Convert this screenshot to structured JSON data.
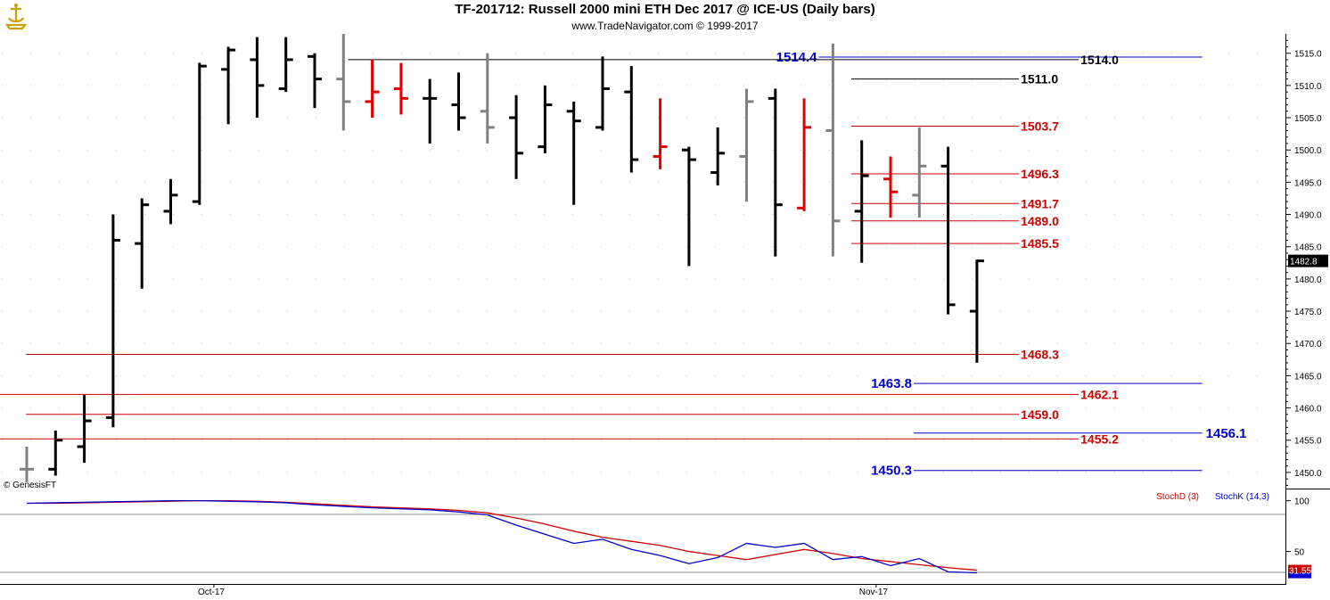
{
  "header": {
    "title": "TF-201712:  Russell 2000 mini ETH Dec 2017 @ ICE-US  (Daily bars)",
    "subtitle": "www.TradeNavigator.com © 1999-2017"
  },
  "watermark": "© GenesisFT",
  "colors": {
    "black_bar": "#000000",
    "gray_bar": "#808080",
    "red_bar": "#e00000",
    "red_level": "#cc0000",
    "blue_level": "#0000cc",
    "stoch_d": "#d00000",
    "stoch_k": "#0000d0",
    "last_price_badge": "#000000"
  },
  "chart_data": [
    {
      "type": "ohlc",
      "ylim": [
        1447.5,
        1518
      ],
      "y_ticks": [
        "1515.0",
        "1510.0",
        "1505.0",
        "1500.0",
        "1495.0",
        "1490.0",
        "1485.0",
        "1480.0",
        "1475.0",
        "1470.0",
        "1465.0",
        "1460.0",
        "1455.0",
        "1450.0"
      ],
      "y_tick_values": [
        1515,
        1510,
        1505,
        1500,
        1495,
        1490,
        1485,
        1480,
        1475,
        1470,
        1465,
        1460,
        1455,
        1450
      ],
      "x_labels": [
        {
          "label": "Oct-17",
          "bar_index": 6.5
        },
        {
          "label": "Nov-17",
          "bar_index": 29.5
        }
      ],
      "last_price": "1482.8",
      "last_price_value": 1482.8,
      "bars": [
        {
          "o": 1450.5,
          "h": 1454.0,
          "l": 1448.5,
          "c": 1450.5,
          "color": "gray"
        },
        {
          "o": 1450.5,
          "h": 1456.5,
          "l": 1449.5,
          "c": 1455.0,
          "color": "black"
        },
        {
          "o": 1454.0,
          "h": 1462.0,
          "l": 1451.5,
          "c": 1458.0,
          "color": "black"
        },
        {
          "o": 1458.5,
          "h": 1490.0,
          "l": 1457.0,
          "c": 1486.0,
          "color": "black"
        },
        {
          "o": 1485.5,
          "h": 1492.5,
          "l": 1478.5,
          "c": 1491.5,
          "color": "black"
        },
        {
          "o": 1490.5,
          "h": 1495.5,
          "l": 1488.5,
          "c": 1493.0,
          "color": "black"
        },
        {
          "o": 1492.0,
          "h": 1513.5,
          "l": 1491.5,
          "c": 1513.0,
          "color": "black"
        },
        {
          "o": 1512.5,
          "h": 1516.0,
          "l": 1504.0,
          "c": 1515.5,
          "color": "black"
        },
        {
          "o": 1514.0,
          "h": 1517.5,
          "l": 1505.0,
          "c": 1510.0,
          "color": "black"
        },
        {
          "o": 1509.5,
          "h": 1517.5,
          "l": 1509.0,
          "c": 1514.0,
          "color": "black"
        },
        {
          "o": 1514.5,
          "h": 1515.0,
          "l": 1506.5,
          "c": 1511.0,
          "color": "black"
        },
        {
          "o": 1511.0,
          "h": 1518.0,
          "l": 1503.0,
          "c": 1507.5,
          "color": "gray"
        },
        {
          "o": 1507.5,
          "h": 1514.0,
          "l": 1505.0,
          "c": 1509.0,
          "color": "red"
        },
        {
          "o": 1509.5,
          "h": 1513.5,
          "l": 1505.5,
          "c": 1508.0,
          "color": "red"
        },
        {
          "o": 1508.0,
          "h": 1511.0,
          "l": 1501.0,
          "c": 1508.0,
          "color": "black"
        },
        {
          "o": 1507.0,
          "h": 1512.0,
          "l": 1503.0,
          "c": 1505.0,
          "color": "black"
        },
        {
          "o": 1506.0,
          "h": 1515.0,
          "l": 1501.0,
          "c": 1503.5,
          "color": "gray"
        },
        {
          "o": 1505.0,
          "h": 1508.5,
          "l": 1495.5,
          "c": 1499.5,
          "color": "black"
        },
        {
          "o": 1500.5,
          "h": 1510.0,
          "l": 1499.5,
          "c": 1507.0,
          "color": "black"
        },
        {
          "o": 1506.0,
          "h": 1507.5,
          "l": 1491.5,
          "c": 1504.5,
          "color": "black"
        },
        {
          "o": 1503.5,
          "h": 1514.5,
          "l": 1503.0,
          "c": 1509.5,
          "color": "black"
        },
        {
          "o": 1509.0,
          "h": 1513.0,
          "l": 1496.5,
          "c": 1498.5,
          "color": "black"
        },
        {
          "o": 1499.0,
          "h": 1508.0,
          "l": 1497.0,
          "c": 1500.5,
          "color": "red"
        },
        {
          "o": 1500.0,
          "h": 1500.5,
          "l": 1482.0,
          "c": 1498.5,
          "color": "black"
        },
        {
          "o": 1496.5,
          "h": 1503.5,
          "l": 1494.5,
          "c": 1499.5,
          "color": "black"
        },
        {
          "o": 1499.0,
          "h": 1509.5,
          "l": 1492.0,
          "c": 1507.5,
          "color": "gray"
        },
        {
          "o": 1508.0,
          "h": 1509.5,
          "l": 1483.5,
          "c": 1491.5,
          "color": "black"
        },
        {
          "o": 1491.0,
          "h": 1508.0,
          "l": 1490.5,
          "c": 1503.5,
          "color": "red"
        },
        {
          "o": 1503.0,
          "h": 1516.5,
          "l": 1483.5,
          "c": 1489.0,
          "color": "gray"
        },
        {
          "o": 1490.5,
          "h": 1501.5,
          "l": 1482.5,
          "c": 1496.0,
          "color": "black"
        },
        {
          "o": 1495.5,
          "h": 1499.0,
          "l": 1489.5,
          "c": 1493.5,
          "color": "red"
        },
        {
          "o": 1493.0,
          "h": 1503.5,
          "l": 1489.5,
          "c": 1497.5,
          "color": "gray"
        },
        {
          "o": 1497.5,
          "h": 1500.5,
          "l": 1474.5,
          "c": 1476.0,
          "color": "black"
        },
        {
          "o": 1475.0,
          "h": 1483.0,
          "l": 1467.0,
          "c": 1482.8,
          "color": "black"
        }
      ],
      "levels": [
        {
          "label": "1514.4",
          "value": 1514.4,
          "color": "blue",
          "x0": 0.63,
          "x1": 0.925,
          "label_side": "left",
          "size": "large"
        },
        {
          "label": "1514.0",
          "value": 1514.0,
          "color": "black",
          "x0": 0.268,
          "x1": 0.83,
          "label_side": "right",
          "size": "normal"
        },
        {
          "label": "1511.0",
          "value": 1511.0,
          "color": "black",
          "x0": 0.655,
          "x1": 0.784,
          "label_side": "right",
          "size": "normal"
        },
        {
          "label": "1503.7",
          "value": 1503.7,
          "color": "red",
          "x0": 0.655,
          "x1": 0.784,
          "label_side": "right",
          "size": "normal"
        },
        {
          "label": "1496.3",
          "value": 1496.3,
          "color": "red",
          "x0": 0.655,
          "x1": 0.784,
          "label_side": "right",
          "size": "normal"
        },
        {
          "label": "1491.7",
          "value": 1491.7,
          "color": "red",
          "x0": 0.655,
          "x1": 0.784,
          "label_side": "right",
          "size": "normal"
        },
        {
          "label": "1489.0",
          "value": 1489.0,
          "color": "red",
          "x0": 0.655,
          "x1": 0.784,
          "label_side": "right",
          "size": "normal"
        },
        {
          "label": "1485.5",
          "value": 1485.5,
          "color": "red",
          "x0": 0.655,
          "x1": 0.784,
          "label_side": "right",
          "size": "normal"
        },
        {
          "label": "1468.3",
          "value": 1468.3,
          "color": "red",
          "x0": 0.02,
          "x1": 0.784,
          "label_side": "right",
          "size": "normal"
        },
        {
          "label": "1463.8",
          "value": 1463.8,
          "color": "blue",
          "x0": 0.703,
          "x1": 0.925,
          "label_side": "left",
          "size": "large"
        },
        {
          "label": "1462.1",
          "value": 1462.1,
          "color": "red",
          "x0": 0.0,
          "x1": 0.83,
          "label_side": "right",
          "size": "normal"
        },
        {
          "label": "1459.0",
          "value": 1459.0,
          "color": "red",
          "x0": 0.02,
          "x1": 0.784,
          "label_side": "right",
          "size": "normal"
        },
        {
          "label": "1456.1",
          "value": 1456.1,
          "color": "blue",
          "x0": 0.703,
          "x1": 0.925,
          "label_side": "right",
          "size": "large"
        },
        {
          "label": "1455.2",
          "value": 1455.2,
          "color": "red",
          "x0": 0.0,
          "x1": 0.83,
          "label_side": "right",
          "size": "normal"
        },
        {
          "label": "1450.3",
          "value": 1450.3,
          "color": "blue",
          "x0": 0.703,
          "x1": 0.925,
          "label_side": "left",
          "size": "large"
        }
      ]
    },
    {
      "type": "line",
      "ylim": [
        18,
        112
      ],
      "y_ticks": [
        "100",
        "50"
      ],
      "y_tick_values": [
        100,
        50
      ],
      "legend": [
        "StochD (3)",
        "StochK (14,3)"
      ],
      "last_value": "31.55",
      "last_value_num": 31.55,
      "series": [
        {
          "name": "StochD (3)",
          "color": "stoch_d",
          "x": [
            0,
            1,
            2,
            3,
            4,
            5,
            6,
            7,
            8,
            9,
            10,
            11,
            12,
            13,
            14,
            15,
            16,
            17,
            18,
            19,
            20,
            21,
            22,
            23,
            24,
            25,
            26,
            27,
            28,
            29,
            30,
            31,
            32,
            33
          ],
          "values": [
            97.5,
            97.5,
            98,
            98.5,
            99,
            99.5,
            100,
            100,
            99.5,
            98.5,
            97,
            95.5,
            94,
            93,
            92,
            90.5,
            88,
            83,
            77,
            70,
            64,
            60,
            56,
            50,
            46,
            42,
            47,
            52,
            48,
            43,
            40,
            37,
            34,
            31.55
          ]
        },
        {
          "name": "StochK (14,3)",
          "color": "stoch_k",
          "x": [
            0,
            1,
            2,
            3,
            4,
            5,
            6,
            7,
            8,
            9,
            10,
            11,
            12,
            13,
            14,
            15,
            16,
            17,
            18,
            19,
            20,
            21,
            22,
            23,
            24,
            25,
            26,
            27,
            28,
            29,
            30,
            31,
            32,
            33
          ],
          "values": [
            97.5,
            98,
            98.5,
            99,
            99.5,
            100,
            100,
            99.5,
            99,
            98,
            96,
            94.5,
            93,
            92,
            91,
            89,
            86,
            76,
            67,
            58,
            62,
            52,
            46,
            38,
            44,
            58,
            54,
            58,
            42,
            45,
            36,
            43,
            30,
            29
          ]
        }
      ]
    }
  ]
}
